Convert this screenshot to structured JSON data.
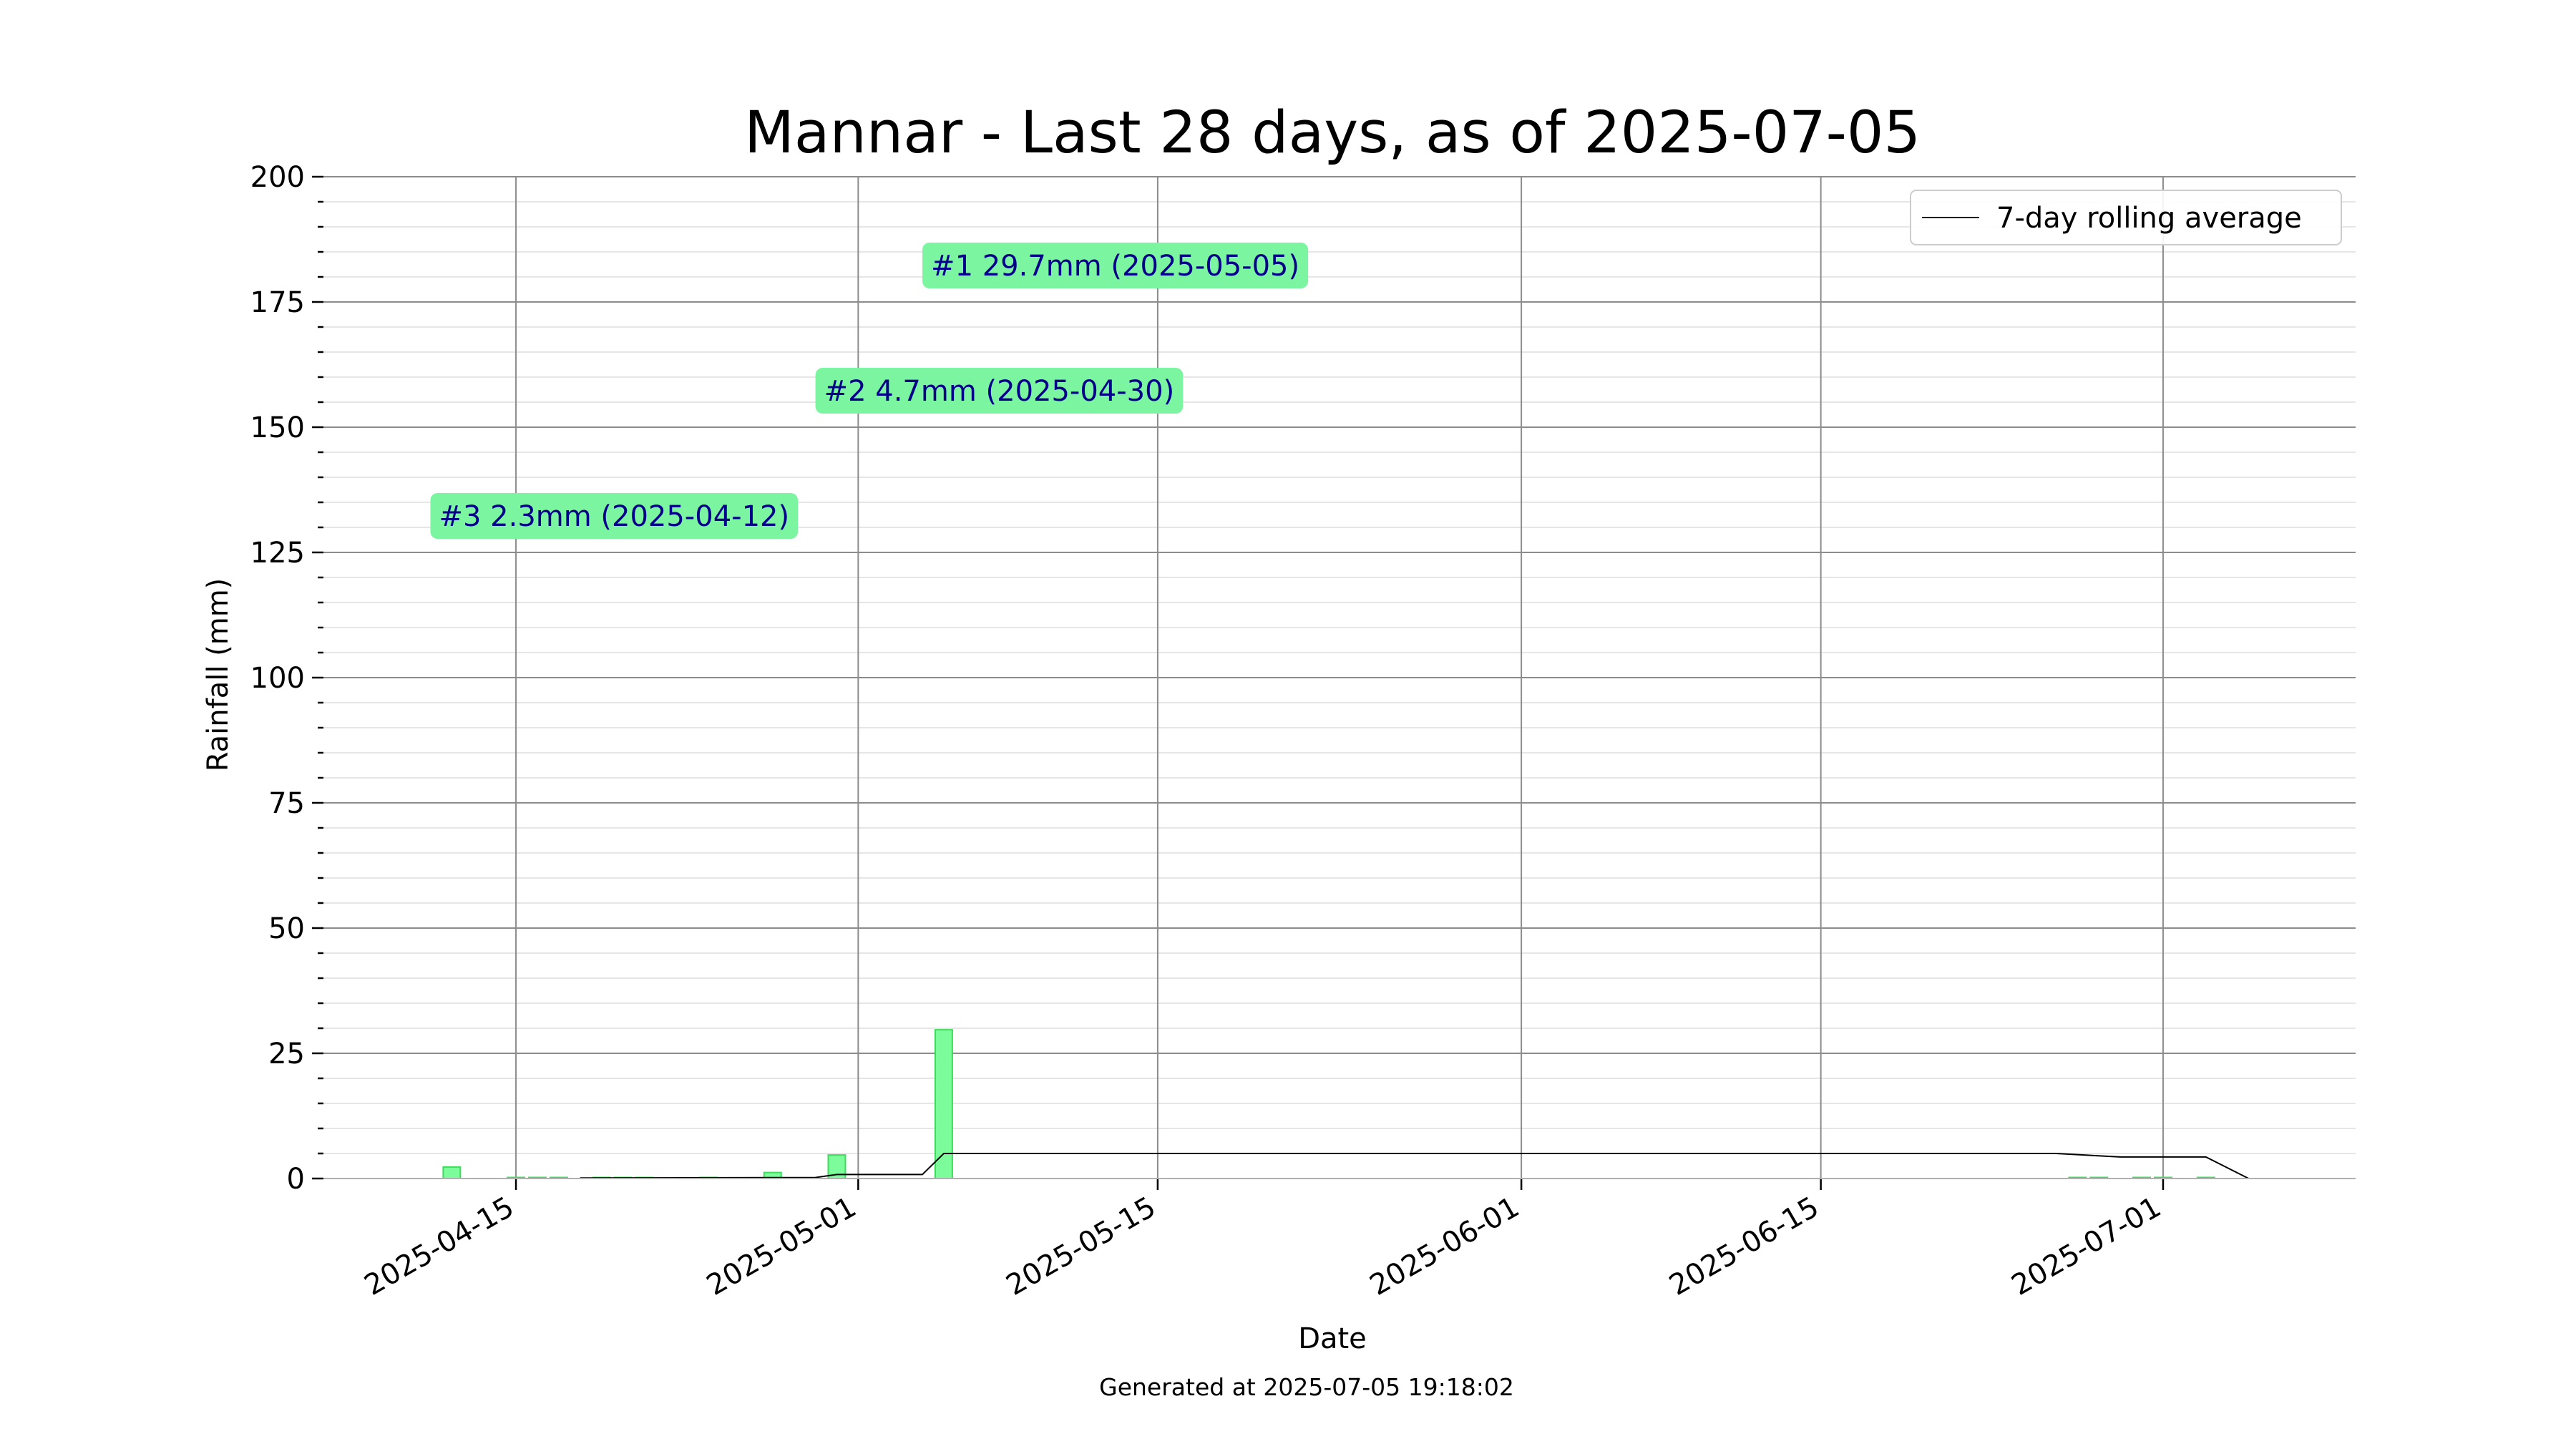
{
  "chart_data": {
    "type": "bar",
    "title": "Mannar - Last 28 days, as of 2025-07-05",
    "xlabel": "Date",
    "ylabel": "Rainfall (mm)",
    "footer": "Generated at 2025-07-05 19:18:02",
    "xlim": [
      "2025-04-06",
      "2025-07-10"
    ],
    "ylim": [
      0,
      200
    ],
    "yticks": [
      0,
      25,
      50,
      75,
      100,
      125,
      150,
      175,
      200
    ],
    "yminor_step": 5,
    "xticks": [
      "2025-04-15",
      "2025-05-01",
      "2025-05-15",
      "2025-06-01",
      "2025-06-15",
      "2025-07-01"
    ],
    "grid": true,
    "legend": {
      "position": "top-right",
      "entries": [
        "7-day rolling average"
      ]
    },
    "bar_color": "#7cfc9a",
    "bar_edge_color": "#3ddc5a",
    "line_color": "#000000",
    "bars": [
      {
        "date": "2025-04-12",
        "value": 2.3
      },
      {
        "date": "2025-04-15",
        "value": 0.1
      },
      {
        "date": "2025-04-16",
        "value": 0.1
      },
      {
        "date": "2025-04-17",
        "value": 0.1
      },
      {
        "date": "2025-04-19",
        "value": 0.1
      },
      {
        "date": "2025-04-20",
        "value": 0.1
      },
      {
        "date": "2025-04-21",
        "value": 0.1
      },
      {
        "date": "2025-04-24",
        "value": 0.1
      },
      {
        "date": "2025-04-27",
        "value": 1.2
      },
      {
        "date": "2025-04-30",
        "value": 4.7
      },
      {
        "date": "2025-05-05",
        "value": 29.7
      },
      {
        "date": "2025-06-27",
        "value": 0.1
      },
      {
        "date": "2025-06-28",
        "value": 0.1
      },
      {
        "date": "2025-06-30",
        "value": 0.1
      },
      {
        "date": "2025-07-01",
        "value": 0.1
      },
      {
        "date": "2025-07-03",
        "value": 0.1
      }
    ],
    "series": [
      {
        "name": "7-day rolling average",
        "points": [
          {
            "date": "2025-04-18",
            "value": 0.1
          },
          {
            "date": "2025-04-29",
            "value": 0.2
          },
          {
            "date": "2025-04-30",
            "value": 0.8
          },
          {
            "date": "2025-05-04",
            "value": 0.8
          },
          {
            "date": "2025-05-05",
            "value": 5.0
          },
          {
            "date": "2025-06-26",
            "value": 5.0
          },
          {
            "date": "2025-06-29",
            "value": 4.3
          },
          {
            "date": "2025-07-03",
            "value": 4.3
          },
          {
            "date": "2025-07-05",
            "value": 0.0
          }
        ]
      }
    ],
    "annotations": [
      {
        "text": "#1 29.7mm (2025-05-05)",
        "date": "2025-05-04",
        "value": 182
      },
      {
        "text": "#2 4.7mm (2025-04-30)",
        "date": "2025-04-29",
        "value": 157
      },
      {
        "text": "#3 2.3mm (2025-04-12)",
        "date": "2025-04-11",
        "value": 132
      }
    ],
    "annotation_bg": "#7cf5a0",
    "annotation_text_color": "#00008b"
  }
}
